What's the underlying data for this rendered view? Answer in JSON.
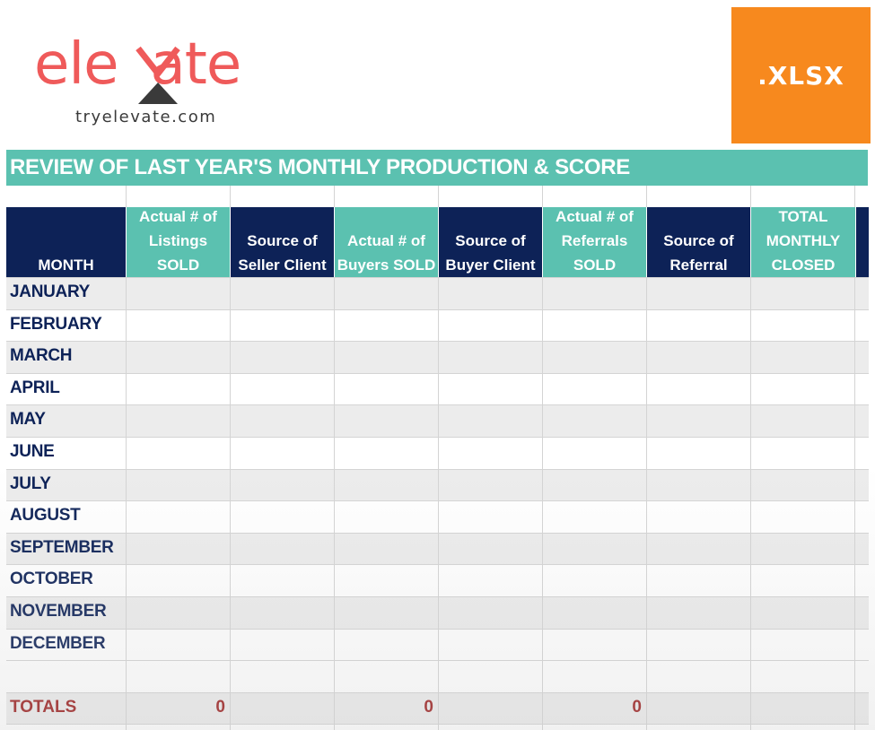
{
  "brand": {
    "logo_left": "ele",
    "logo_right": "ate",
    "logo_full": "elevate",
    "domain": "tryelevate.com",
    "brand_color": "#ef5a5a",
    "mark_color": "#3a3a3a"
  },
  "badge": {
    "label": ".XLSX",
    "color": "#f7891e"
  },
  "sheet": {
    "title": "REVIEW OF LAST YEAR'S MONTHLY PRODUCTION & SCORE",
    "colors": {
      "teal": "#5bc1b0",
      "navy": "#0d2257",
      "row_shade": "#ececec",
      "totals": "#9b1c1c"
    },
    "headers": [
      "MONTH",
      "Actual # of\nListings SOLD",
      "Source of\nSeller Client",
      "Actual # of\nBuyers SOLD",
      "Source of\nBuyer Client",
      "Actual # of\nReferrals\nSOLD",
      "Source of\nReferral",
      "TOTAL\nMONTHLY\nCLOSED"
    ],
    "months": [
      "JANUARY",
      "FEBRUARY",
      "MARCH",
      "APRIL",
      "MAY",
      "JUNE",
      "JULY",
      "AUGUST",
      "SEPTEMBER",
      "OCTOBER",
      "NOVEMBER",
      "DECEMBER"
    ],
    "totals_label": "TOTALS",
    "totals": {
      "listings": "0",
      "buyers": "0",
      "referrals": "0"
    }
  }
}
